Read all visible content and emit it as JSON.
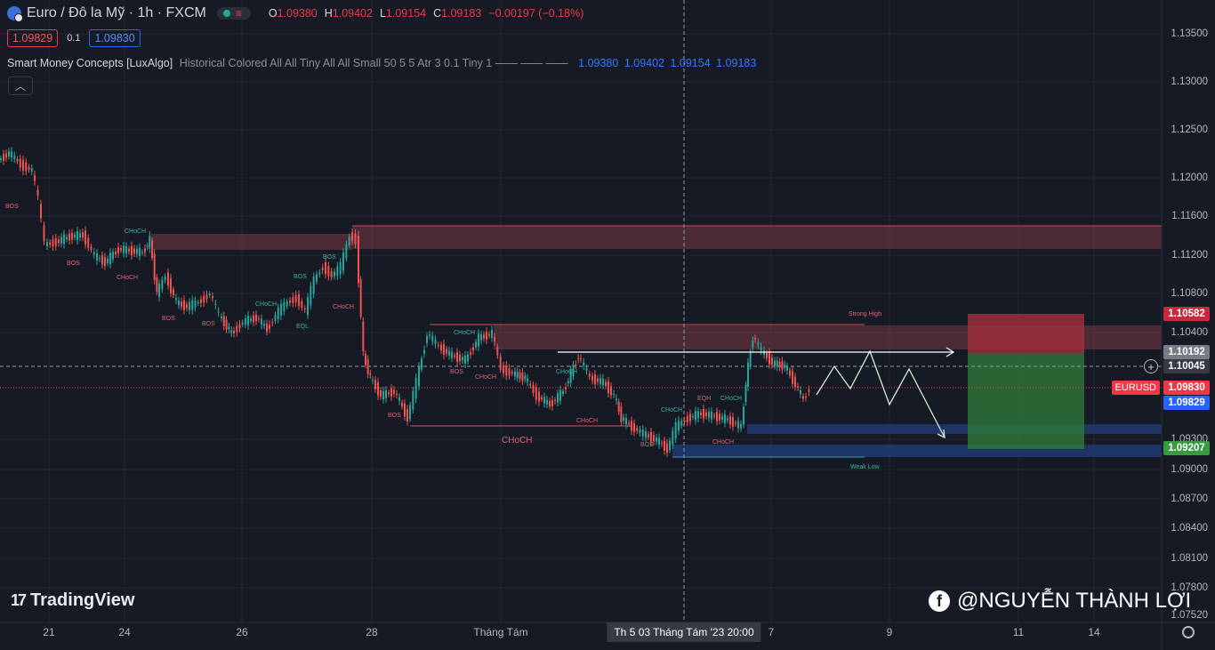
{
  "header": {
    "title": "Euro / Đô la Mỹ · 1h · FXCM",
    "ohlc": {
      "o_label": "O",
      "o": "1.09380",
      "h_label": "H",
      "h": "1.09402",
      "l_label": "L",
      "l": "1.09154",
      "c_label": "C",
      "c": "1.09183",
      "change": "−0.00197 (−0.18%)"
    }
  },
  "quote": {
    "sell": "1.09829",
    "spread": "0.1",
    "buy": "1.09830"
  },
  "indicator": {
    "name": "Smart Money Concepts [LuxAlgo]",
    "params": "Historical Colored All All Tiny All All Small 50 5 5 Atr 3 0.1 Tiny 1 —— —— ——",
    "values": "1.09380 1.09402 1.09154 1.09183"
  },
  "y_axis": {
    "ticks": [
      "1.13500",
      "1.13000",
      "1.12500",
      "1.12000",
      "1.11600",
      "1.11200",
      "1.10800",
      "1.10400",
      "1.09300",
      "1.09000",
      "1.08700",
      "1.08400",
      "1.08100",
      "1.07800",
      "1.07520"
    ],
    "tags": {
      "take_profit": "1.10582",
      "entry": "1.10192",
      "crosshair": "1.10045",
      "bid": "1.09830",
      "ask": "1.09829",
      "stop": "1.09207",
      "symbol": "EURUSD"
    }
  },
  "x_axis": {
    "labels": [
      "21",
      "24",
      "26",
      "28",
      "Tháng Tám",
      "7",
      "9",
      "11",
      "14"
    ],
    "crosshair_label": "Th 5 03 Tháng Tám '23   20:00"
  },
  "chart_labels": {
    "bos": "BOS",
    "choch": "CHoCH",
    "eql": "EQL",
    "eqh": "EQH",
    "strong_high": "Strong High",
    "weak_low": "Weak Low"
  },
  "branding": {
    "logo": "TradingView",
    "watermark": "@NGUYỄN THÀNH LỢI"
  },
  "colors": {
    "bg": "#161a25",
    "up": "#26a69a",
    "down": "#ef5350",
    "supply": "#6d3a44",
    "demand": "#1e3a6e"
  }
}
